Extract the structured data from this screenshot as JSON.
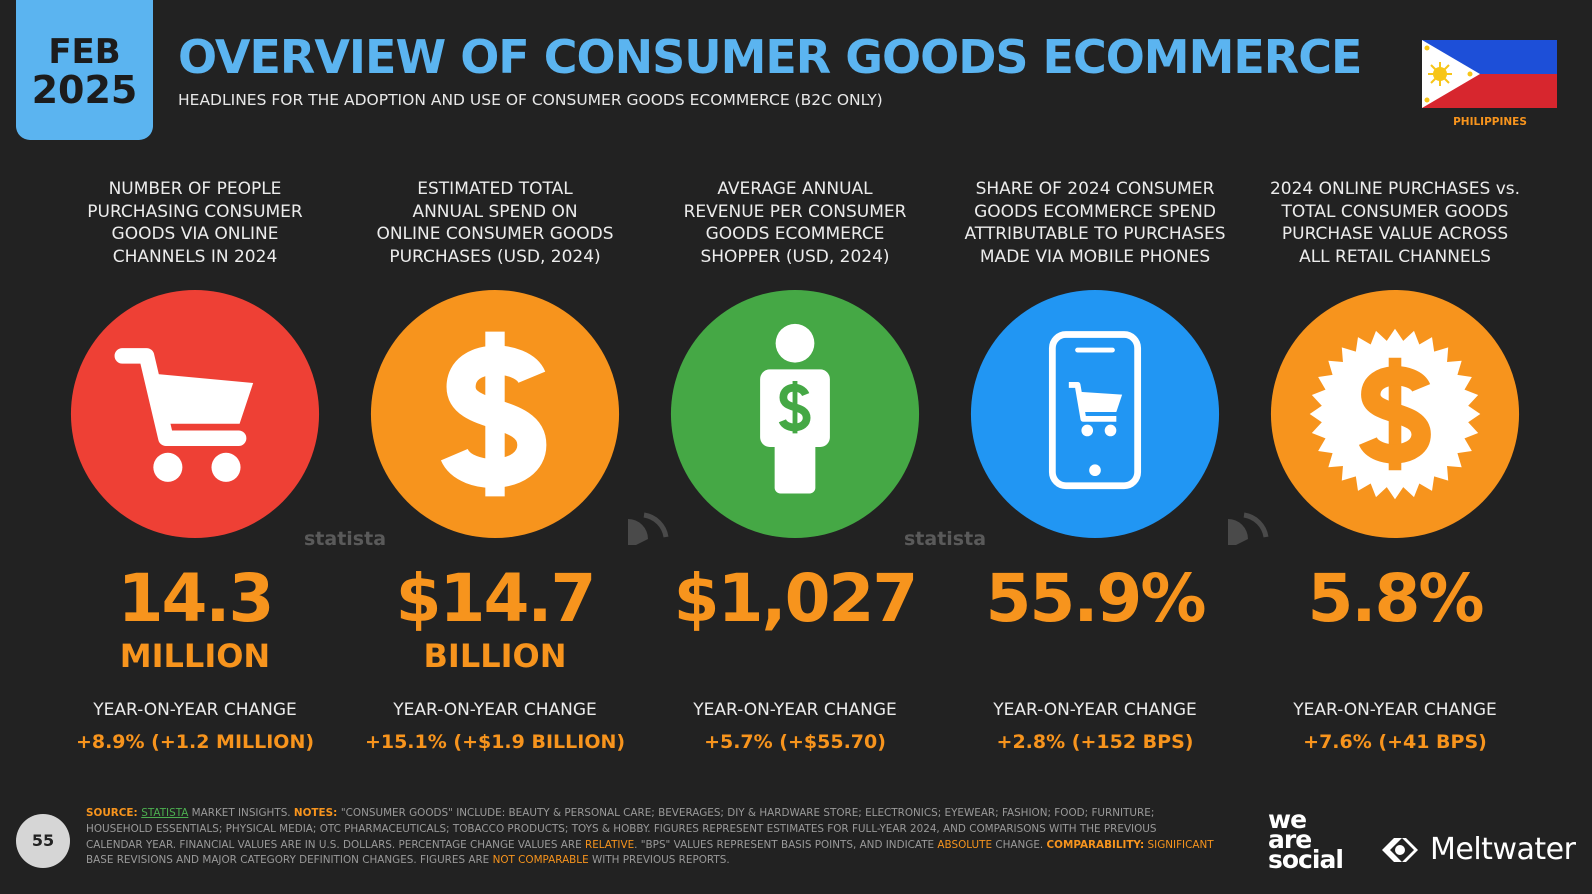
{
  "date": {
    "month": "FEB",
    "year": "2025"
  },
  "header": {
    "title": "OVERVIEW OF CONSUMER GOODS ECOMMERCE",
    "subtitle": "HEADLINES FOR THE ADOPTION AND USE OF CONSUMER GOODS ECOMMERCE (B2C ONLY)",
    "country": "PHILIPPINES"
  },
  "cards": [
    {
      "label": [
        "NUMBER OF PEOPLE",
        "PURCHASING CONSUMER",
        "GOODS VIA ONLINE",
        "CHANNELS IN 2024"
      ],
      "value": "14.3",
      "unit": "MILLION",
      "change_label": "YEAR-ON-YEAR CHANGE",
      "change": "+8.9% (+1.2 MILLION)"
    },
    {
      "label": [
        "ESTIMATED TOTAL",
        "ANNUAL SPEND ON",
        "ONLINE CONSUMER GOODS",
        "PURCHASES (USD, 2024)"
      ],
      "value": "$14.7",
      "unit": "BILLION",
      "change_label": "YEAR-ON-YEAR CHANGE",
      "change": "+15.1% (+$1.9 BILLION)"
    },
    {
      "label": [
        "AVERAGE ANNUAL",
        "REVENUE PER CONSUMER",
        "GOODS ECOMMERCE",
        "SHOPPER (USD, 2024)"
      ],
      "value": "$1,027",
      "change_label": "YEAR-ON-YEAR CHANGE",
      "change": "+5.7% (+$55.70)"
    },
    {
      "label": [
        "SHARE OF 2024 CONSUMER",
        "GOODS ECOMMERCE SPEND",
        "ATTRIBUTABLE TO PURCHASES",
        "MADE VIA MOBILE PHONES"
      ],
      "value": "55.9%",
      "change_label": "YEAR-ON-YEAR CHANGE",
      "change": "+2.8% (+152 BPS)"
    },
    {
      "label": [
        "2024 ONLINE PURCHASES vs.",
        "TOTAL CONSUMER GOODS",
        "PURCHASE VALUE ACROSS",
        "ALL RETAIL CHANNELS"
      ],
      "value": "5.8%",
      "change_label": "YEAR-ON-YEAR CHANGE",
      "change": "+7.6% (+41 BPS)"
    }
  ],
  "watermarks": [
    "statista",
    "statista"
  ],
  "footer": {
    "page": "55",
    "segments": [
      {
        "text": "SOURCE: ",
        "style": "label"
      },
      {
        "text": "STATISTA",
        "style": "link"
      },
      {
        "text": " MARKET INSIGHTS. ",
        "style": "plain"
      },
      {
        "text": "NOTES: ",
        "style": "label"
      },
      {
        "text": "\"CONSUMER GOODS\" INCLUDE: BEAUTY & PERSONAL CARE; BEVERAGES; DIY & HARDWARE STORE; ELECTRONICS; EYEWEAR; FASHION; FOOD; FURNITURE; HOUSEHOLD ESSENTIALS; PHYSICAL MEDIA; OTC PHARMACEUTICALS; TOBACCO PRODUCTS; TOYS & HOBBY. FIGURES REPRESENT ESTIMATES FOR FULL-YEAR 2024, AND COMPARISONS WITH THE PREVIOUS CALENDAR YEAR. FINANCIAL VALUES ARE IN U.S. DOLLARS. PERCENTAGE CHANGE VALUES ARE ",
        "style": "plain"
      },
      {
        "text": "RELATIVE",
        "style": "accent"
      },
      {
        "text": ". \"BPS\" VALUES REPRESENT BASIS POINTS, AND INDICATE ",
        "style": "plain"
      },
      {
        "text": "ABSOLUTE",
        "style": "accent"
      },
      {
        "text": " CHANGE. ",
        "style": "plain"
      },
      {
        "text": "COMPARABILITY:",
        "style": "label"
      },
      {
        "text": " ",
        "style": "plain"
      },
      {
        "text": "SIGNIFICANT",
        "style": "accent"
      },
      {
        "text": " BASE REVISIONS AND MAJOR CATEGORY DEFINITION CHANGES. FIGURES ARE ",
        "style": "plain"
      },
      {
        "text": "NOT COMPARABLE",
        "style": "accent"
      },
      {
        "text": " WITH PREVIOUS REPORTS.",
        "style": "plain"
      }
    ]
  },
  "brands": {
    "agency": [
      "we",
      "are",
      "social"
    ],
    "partner": "Meltwater"
  }
}
